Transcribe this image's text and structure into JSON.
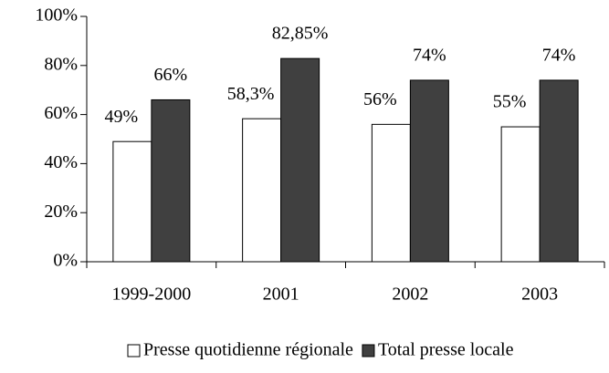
{
  "chart_data": {
    "type": "bar",
    "categories": [
      "1999-2000",
      "2001",
      "2002",
      "2003"
    ],
    "series": [
      {
        "name": "Presse quotidienne régionale",
        "color": "#ffffff",
        "values": [
          49,
          58.3,
          56,
          55
        ],
        "value_labels": [
          "49%",
          "58,3%",
          "56%",
          "55%"
        ]
      },
      {
        "name": "Total presse locale",
        "color": "#404040",
        "values": [
          66,
          82.85,
          74,
          74
        ],
        "value_labels": [
          "66%",
          "82,85%",
          "74%",
          "74%"
        ]
      }
    ],
    "ylim": [
      0,
      100
    ],
    "yticks": [
      {
        "value": 0,
        "label": "0%"
      },
      {
        "value": 20,
        "label": "20%"
      },
      {
        "value": 40,
        "label": "40%"
      },
      {
        "value": 60,
        "label": "60%"
      },
      {
        "value": 80,
        "label": "80%"
      },
      {
        "value": 100,
        "label": "100%"
      }
    ],
    "legend": "bottom"
  }
}
